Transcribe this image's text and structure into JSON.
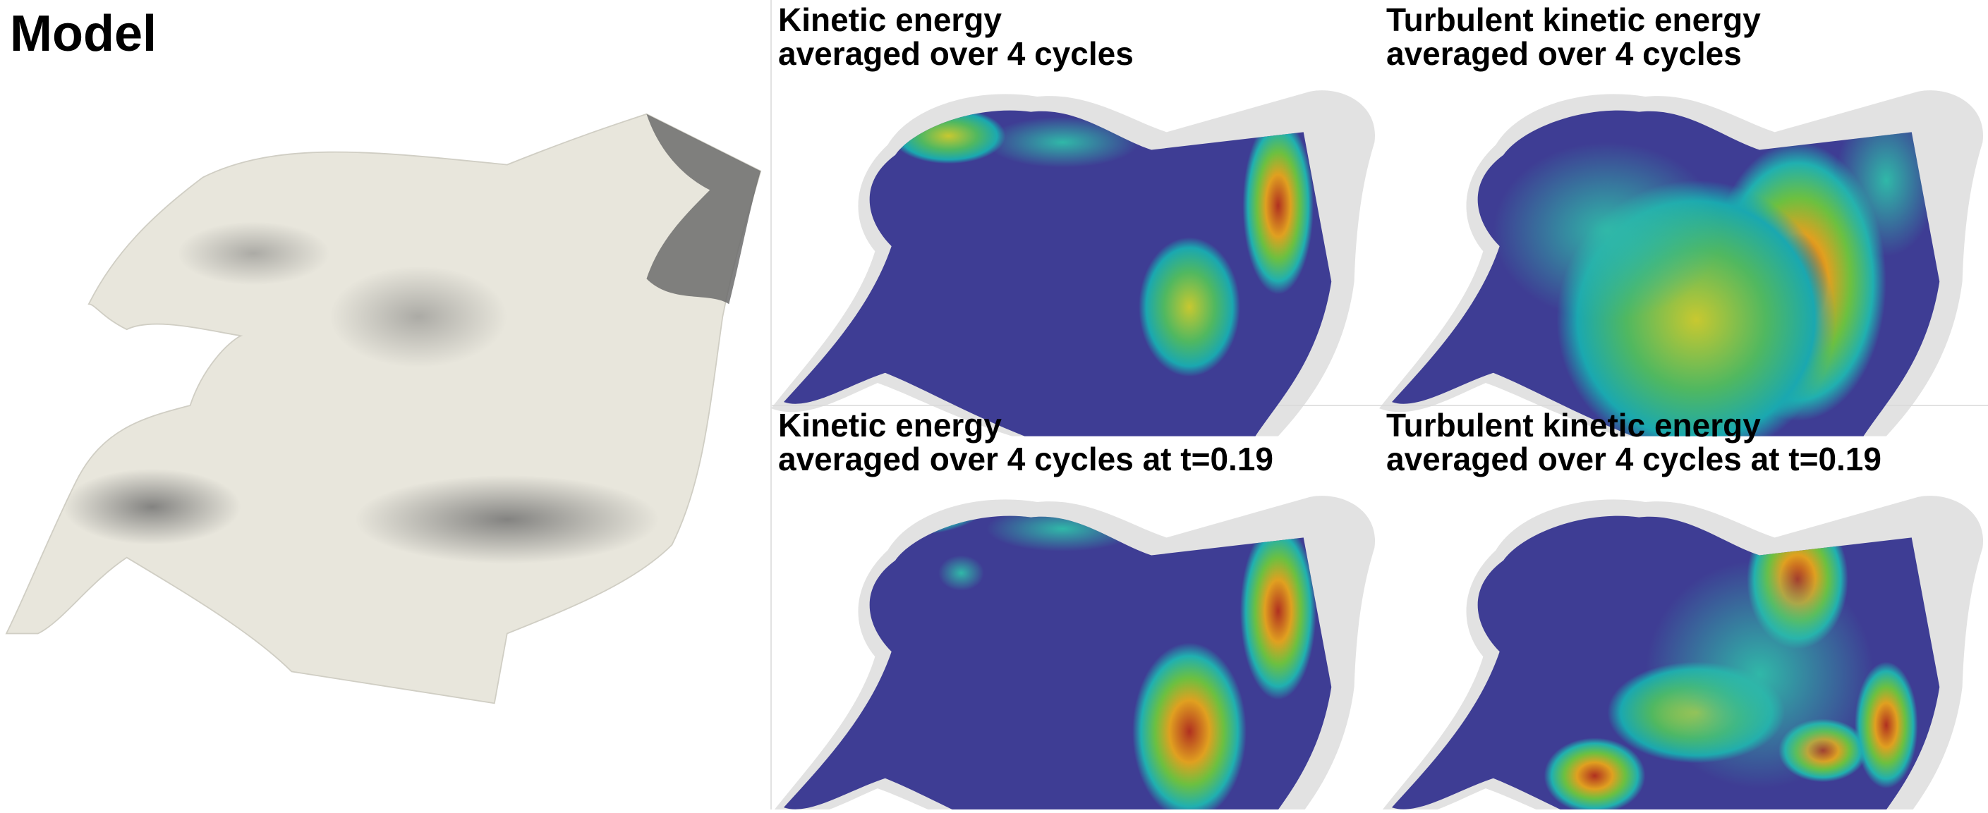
{
  "model_panel": {
    "title": "Model"
  },
  "panels": [
    {
      "title_lines": [
        "Kinetic energy",
        "averaged over 4 cycles"
      ]
    },
    {
      "title_lines": [
        "Turbulent kinetic energy",
        "averaged over 4 cycles"
      ]
    },
    {
      "title_lines": [
        "Kinetic energy",
        "averaged over 4 cycles at t=0.19"
      ]
    },
    {
      "title_lines": [
        "Turbulent kinetic energy",
        "averaged over 4 cycles at t=0.19"
      ]
    }
  ]
}
